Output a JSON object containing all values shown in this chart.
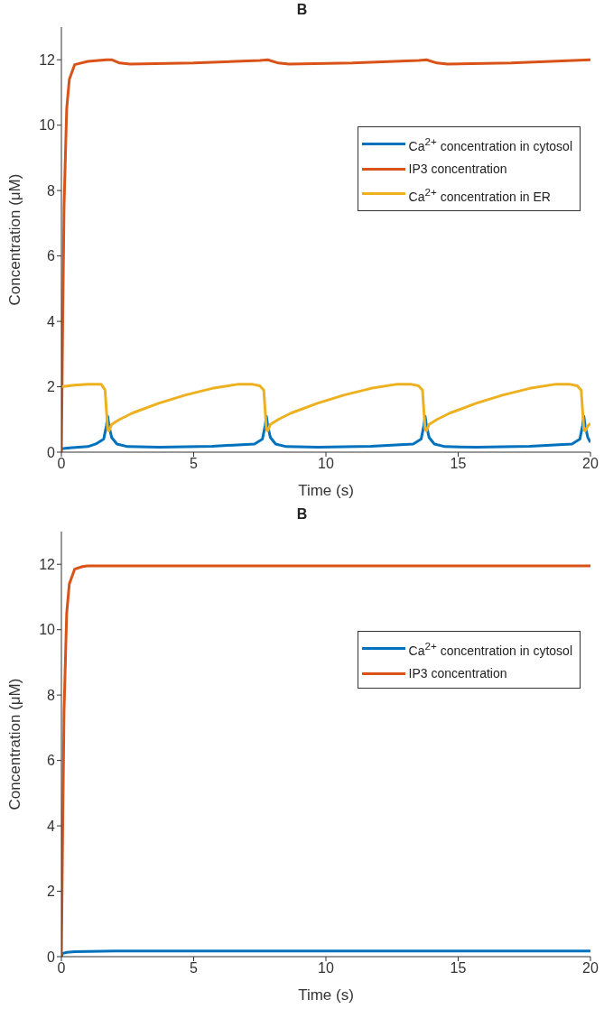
{
  "chart_data": [
    {
      "type": "line",
      "title": "B",
      "xlabel": "Time (s)",
      "ylabel": "Concentration (μM)",
      "xlim": [
        0,
        20
      ],
      "xticks": [
        0,
        5,
        10,
        15,
        20
      ],
      "ylim": [
        0,
        13
      ],
      "yticks": [
        0,
        2,
        4,
        6,
        8,
        10,
        12
      ],
      "grid": false,
      "legend": "top right",
      "marker": "none",
      "line_style": "solid",
      "series": [
        {
          "name": "Ca$^{2+}$ concentration in cytosol",
          "color": "#0072bd",
          "x": [
            0,
            0.3,
            1,
            1.3,
            1.6,
            1.7,
            1.75,
            1.8,
            1.9,
            2.1,
            2.5,
            3.7,
            5.7,
            7.3,
            7.6,
            7.7,
            7.75,
            7.8,
            7.9,
            8.1,
            8.5,
            9.7,
            11.7,
            13.3,
            13.6,
            13.7,
            13.75,
            13.8,
            13.9,
            14.1,
            14.5,
            15.7,
            17.7,
            19.3,
            19.6,
            19.7,
            19.75,
            19.8,
            19.9,
            20
          ],
          "values": [
            0.1,
            0.13,
            0.17,
            0.25,
            0.4,
            0.8,
            1.1,
            0.8,
            0.45,
            0.25,
            0.17,
            0.15,
            0.18,
            0.25,
            0.4,
            0.8,
            1.1,
            0.8,
            0.45,
            0.25,
            0.17,
            0.15,
            0.18,
            0.25,
            0.4,
            0.8,
            1.1,
            0.8,
            0.45,
            0.25,
            0.17,
            0.15,
            0.18,
            0.25,
            0.4,
            0.8,
            1.1,
            0.8,
            0.45,
            0.3
          ]
        },
        {
          "name": "IP3 concentration",
          "color": "#d95319",
          "x": [
            0,
            0.05,
            0.1,
            0.2,
            0.3,
            0.5,
            1,
            1.7,
            1.9,
            2.2,
            2.6,
            5,
            7.5,
            7.8,
            8.2,
            8.6,
            11,
            13.5,
            13.8,
            14.2,
            14.6,
            17,
            20
          ],
          "values": [
            0,
            4,
            7.5,
            10.5,
            11.4,
            11.85,
            11.95,
            12,
            12,
            11.9,
            11.87,
            11.9,
            11.98,
            12,
            11.9,
            11.87,
            11.9,
            11.98,
            12,
            11.9,
            11.87,
            11.9,
            12
          ]
        },
        {
          "name": "Ca$^{2+}$ concentration in ER",
          "color": "#edb120",
          "x": [
            0,
            0.5,
            1,
            1.5,
            1.65,
            1.7,
            1.75,
            1.8,
            1.9,
            2.2,
            2.7,
            3.7,
            4.7,
            5.7,
            6.7,
            7.2,
            7.5,
            7.65,
            7.7,
            7.75,
            7.8,
            7.9,
            8.2,
            8.7,
            9.7,
            10.7,
            11.7,
            12.7,
            13.2,
            13.5,
            13.65,
            13.7,
            13.75,
            13.8,
            13.9,
            14.2,
            14.7,
            15.7,
            16.7,
            17.7,
            18.7,
            19.2,
            19.5,
            19.65,
            19.7,
            19.75,
            19.8,
            19.9,
            20
          ],
          "values": [
            2,
            2.05,
            2.08,
            2.08,
            1.9,
            1.3,
            0.7,
            0.65,
            0.85,
            1,
            1.2,
            1.5,
            1.75,
            1.95,
            2.08,
            2.08,
            2.03,
            1.9,
            1.3,
            0.7,
            0.65,
            0.85,
            1,
            1.2,
            1.5,
            1.75,
            1.95,
            2.08,
            2.08,
            2.03,
            1.9,
            1.3,
            0.7,
            0.65,
            0.85,
            1,
            1.2,
            1.5,
            1.75,
            1.95,
            2.08,
            2.08,
            2.03,
            1.9,
            1.3,
            0.7,
            0.65,
            0.8,
            0.88
          ]
        }
      ]
    },
    {
      "type": "line",
      "title": "B",
      "xlabel": "Time (s)",
      "ylabel": "Concentration (μM)",
      "xlim": [
        0,
        20
      ],
      "xticks": [
        0,
        5,
        10,
        15,
        20
      ],
      "ylim": [
        0,
        13
      ],
      "yticks": [
        0,
        2,
        4,
        6,
        8,
        10,
        12
      ],
      "grid": false,
      "legend": "top right",
      "marker": "none",
      "line_style": "solid",
      "series": [
        {
          "name": "Ca$^{2+}$ concentration in cytosol",
          "color": "#0072bd",
          "x": [
            0,
            0.05,
            0.2,
            0.5,
            1,
            2,
            5,
            10,
            15,
            20
          ],
          "values": [
            0,
            0.1,
            0.13,
            0.15,
            0.16,
            0.17,
            0.17,
            0.17,
            0.17,
            0.17
          ]
        },
        {
          "name": "IP3 concentration",
          "color": "#d95319",
          "x": [
            0,
            0.05,
            0.1,
            0.2,
            0.3,
            0.5,
            0.8,
            1,
            5,
            10,
            15,
            20
          ],
          "values": [
            0,
            4,
            7.5,
            10.5,
            11.4,
            11.85,
            11.93,
            11.95,
            11.95,
            11.95,
            11.95,
            11.95
          ]
        }
      ]
    }
  ]
}
